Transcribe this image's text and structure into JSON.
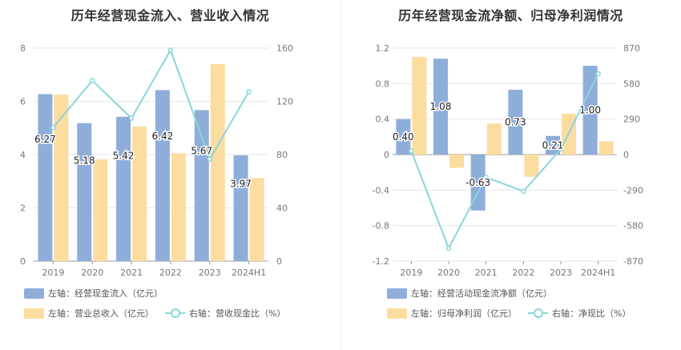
{
  "colors": {
    "bar1": "#8eaed9",
    "bar2": "#fddca0",
    "line": "#8ad6db",
    "grid": "#e6e6e6",
    "axis_text": "#777777",
    "axis_line": "#999999"
  },
  "chart_data": [
    {
      "type": "bar",
      "title": "历年经营现金流入、营业收入情况",
      "categories": [
        "2019",
        "2020",
        "2021",
        "2022",
        "2023",
        "2024H1"
      ],
      "left_axis": {
        "ylim": [
          0,
          8
        ],
        "ticks": [
          "0",
          "2",
          "4",
          "6",
          "8"
        ]
      },
      "right_axis": {
        "ylim": [
          0,
          160
        ],
        "ticks": [
          "0",
          "40",
          "80",
          "120",
          "160"
        ]
      },
      "series": [
        {
          "name": "左轴：经营现金流入（亿元）",
          "axis": "left",
          "kind": "bar",
          "values": [
            6.27,
            5.18,
            5.42,
            6.42,
            5.67,
            3.97
          ],
          "labels": [
            "6.27",
            "5.18",
            "5.42",
            "6.42",
            "5.67",
            "3.97"
          ]
        },
        {
          "name": "左轴：营业总收入（亿元）",
          "axis": "left",
          "kind": "bar",
          "values": [
            6.25,
            3.82,
            5.05,
            4.05,
            7.4,
            3.12
          ]
        },
        {
          "name": "右轴：营收现金比（%）",
          "axis": "right",
          "kind": "line",
          "values": [
            100.3,
            135.6,
            107.3,
            158.5,
            76.6,
            127.2
          ]
        }
      ],
      "legend": {
        "row1": [
          "左轴：经营现金流入（亿元）"
        ],
        "row2": [
          "左轴：营业总收入（亿元）",
          "右轴：营收现金比（%）"
        ]
      }
    },
    {
      "type": "bar",
      "title": "历年经营现金流净额、归母净利润情况",
      "categories": [
        "2019",
        "2020",
        "2021",
        "2022",
        "2023",
        "2024H1"
      ],
      "left_axis": {
        "ylim": [
          -1.2,
          1.2
        ],
        "ticks": [
          "-1.2",
          "-0.8",
          "-0.4",
          "0",
          "0.4",
          "0.8",
          "1.2"
        ]
      },
      "right_axis": {
        "ylim": [
          -870,
          870
        ],
        "ticks": [
          "-870",
          "-580",
          "-290",
          "0",
          "290",
          "580",
          "870"
        ]
      },
      "series": [
        {
          "name": "左轴：经营活动现金流净额（亿元）",
          "axis": "left",
          "kind": "bar",
          "values": [
            0.4,
            1.08,
            -0.63,
            0.73,
            0.21,
            1.0
          ],
          "labels": [
            "0.40",
            "1.08",
            "-0.63",
            "0.73",
            "0.21",
            "1.00"
          ]
        },
        {
          "name": "左轴：归母净利润（亿元）",
          "axis": "left",
          "kind": "bar",
          "values": [
            1.1,
            -0.15,
            0.35,
            -0.25,
            0.46,
            0.15
          ]
        },
        {
          "name": "右轴：净现比（%）",
          "axis": "right",
          "kind": "line",
          "values": [
            30,
            -765,
            -185,
            -300,
            45,
            660
          ]
        }
      ],
      "legend": {
        "row1": [
          "左轴：经营活动现金流净额（亿元）"
        ],
        "row2": [
          "左轴：归母净利润（亿元）",
          "右轴：净现比（%）"
        ]
      }
    }
  ]
}
